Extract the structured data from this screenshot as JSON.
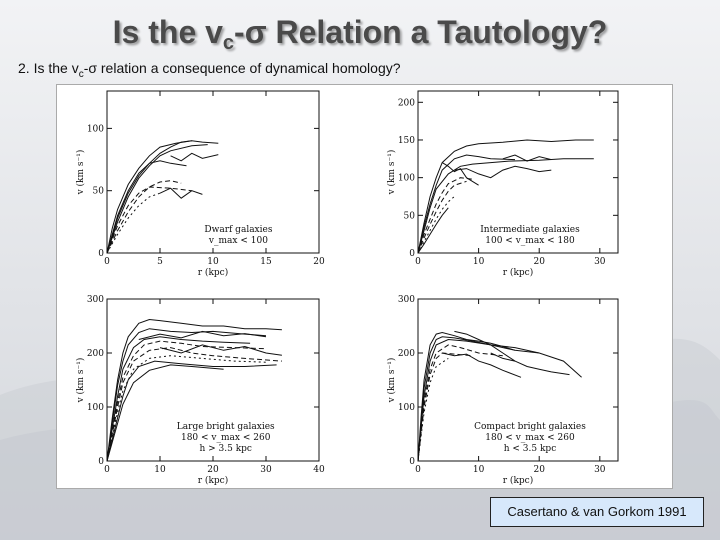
{
  "slide": {
    "title_main": "Is the v",
    "title_sub": "c",
    "title_rest": "-σ Relation a Tautology?",
    "subtitle_pre": "2. Is the v",
    "subtitle_sub": "c",
    "subtitle_post": "-σ relation a consequence of dynamical homology?",
    "credit": "Casertano & van Gorkom 1991"
  },
  "chart_data": [
    {
      "type": "line",
      "ylabel": "v (km s⁻¹)",
      "xlabel": "r (kpc)",
      "xlim": [
        0,
        20
      ],
      "ylim": [
        0,
        130
      ],
      "xticks": [
        0,
        5,
        10,
        15,
        20
      ],
      "yticks": [
        0,
        50,
        100
      ],
      "annotation": [
        "Dwarf galaxies",
        "v_max < 100"
      ],
      "series": [
        {
          "x": [
            0,
            0.5,
            1,
            2,
            3,
            4,
            5,
            6.5,
            8
          ],
          "y": [
            0,
            20,
            35,
            55,
            68,
            78,
            85,
            88,
            90
          ]
        },
        {
          "x": [
            0,
            1,
            2,
            3,
            4,
            5,
            6,
            8,
            9.5
          ],
          "y": [
            0,
            25,
            45,
            60,
            70,
            78,
            82,
            86,
            87
          ]
        },
        {
          "x": [
            0,
            1,
            2,
            3,
            4,
            5,
            6,
            7.5
          ],
          "y": [
            0,
            30,
            50,
            64,
            72,
            74,
            72,
            70
          ]
        },
        {
          "x": [
            0,
            1,
            2,
            3,
            4,
            5,
            6,
            7
          ],
          "y": [
            0,
            18,
            33,
            45,
            53,
            57,
            58,
            56
          ]
        },
        {
          "x": [
            0,
            1,
            2,
            3,
            4,
            6,
            8
          ],
          "y": [
            0,
            22,
            38,
            48,
            53,
            52,
            50
          ]
        },
        {
          "x": [
            0,
            1,
            2,
            3,
            4,
            5
          ],
          "y": [
            0,
            15,
            28,
            38,
            45,
            48
          ]
        },
        {
          "x": [
            0,
            1,
            2,
            3,
            4,
            5,
            6,
            7,
            8,
            9,
            10.5
          ],
          "y": [
            0,
            28,
            48,
            62,
            72,
            80,
            85,
            89,
            90,
            89,
            88
          ]
        },
        {
          "x": [
            5,
            6,
            7,
            8,
            9
          ],
          "y": [
            48,
            52,
            44,
            50,
            47
          ]
        },
        {
          "x": [
            6,
            7,
            8,
            9,
            10.5
          ],
          "y": [
            78,
            74,
            80,
            76,
            79
          ]
        }
      ]
    },
    {
      "type": "line",
      "ylabel": "v (km s⁻¹)",
      "xlabel": "r (kpc)",
      "xlim": [
        0,
        33
      ],
      "ylim": [
        0,
        215
      ],
      "xticks": [
        0,
        10,
        20,
        30
      ],
      "yticks": [
        0,
        50,
        100,
        150,
        200
      ],
      "annotation": [
        "Intermediate galaxies",
        "100 < v_max < 180"
      ],
      "series": [
        {
          "x": [
            0,
            1,
            2,
            3,
            4,
            6,
            8,
            10,
            14,
            18,
            22,
            26,
            29
          ],
          "y": [
            0,
            40,
            75,
            100,
            120,
            135,
            142,
            145,
            147,
            150,
            148,
            150,
            150
          ]
        },
        {
          "x": [
            0,
            1,
            2,
            3,
            5,
            7,
            9,
            12,
            15,
            20,
            24,
            29
          ],
          "y": [
            0,
            30,
            60,
            85,
            105,
            115,
            118,
            120,
            122,
            123,
            125,
            125
          ]
        },
        {
          "x": [
            0,
            1,
            2,
            3,
            4,
            6,
            8,
            10,
            12,
            16
          ],
          "y": [
            0,
            35,
            65,
            90,
            110,
            125,
            130,
            128,
            125,
            124
          ]
        },
        {
          "x": [
            0,
            1,
            2,
            3,
            4,
            5,
            7,
            9
          ],
          "y": [
            0,
            25,
            45,
            65,
            80,
            92,
            100,
            98
          ]
        },
        {
          "x": [
            0,
            1,
            2,
            3,
            4,
            5,
            6,
            8
          ],
          "y": [
            0,
            20,
            38,
            55,
            70,
            82,
            90,
            95
          ]
        },
        {
          "x": [
            0,
            1,
            2,
            3,
            4,
            5,
            6
          ],
          "y": [
            0,
            15,
            30,
            45,
            58,
            68,
            75
          ]
        },
        {
          "x": [
            0,
            1,
            2,
            3,
            4,
            5
          ],
          "y": [
            0,
            12,
            25,
            38,
            50,
            60
          ]
        },
        {
          "x": [
            4,
            5,
            6,
            7,
            8,
            9,
            10
          ],
          "y": [
            120,
            115,
            108,
            112,
            100,
            95,
            90
          ]
        },
        {
          "x": [
            6,
            8,
            10,
            12,
            14,
            16,
            18,
            20,
            22
          ],
          "y": [
            110,
            112,
            105,
            100,
            110,
            115,
            112,
            108,
            110
          ]
        },
        {
          "x": [
            14,
            16,
            18,
            20,
            22
          ],
          "y": [
            125,
            130,
            122,
            128,
            124
          ]
        }
      ]
    },
    {
      "type": "line",
      "ylabel": "v (km s⁻¹)",
      "xlabel": "r (kpc)",
      "xlim": [
        0,
        40
      ],
      "ylim": [
        0,
        300
      ],
      "xticks": [
        0,
        10,
        20,
        30,
        40
      ],
      "yticks": [
        0,
        100,
        200,
        300
      ],
      "annotation": [
        "Large bright galaxies",
        "180 < v_max < 260",
        "h > 3.5 kpc"
      ],
      "series": [
        {
          "x": [
            0,
            1,
            2,
            3,
            4,
            6,
            8,
            10,
            14,
            18,
            22,
            26,
            30,
            33
          ],
          "y": [
            0,
            80,
            150,
            200,
            230,
            255,
            262,
            260,
            255,
            250,
            250,
            245,
            245,
            243
          ]
        },
        {
          "x": [
            0,
            1,
            2,
            3,
            4,
            6,
            8,
            12,
            16,
            20,
            26,
            30
          ],
          "y": [
            0,
            70,
            140,
            185,
            215,
            238,
            245,
            240,
            238,
            240,
            235,
            232
          ]
        },
        {
          "x": [
            0,
            1,
            2,
            3,
            5,
            7,
            10,
            14,
            18,
            22,
            27
          ],
          "y": [
            0,
            60,
            120,
            170,
            210,
            225,
            230,
            225,
            222,
            220,
            218
          ]
        },
        {
          "x": [
            0,
            1,
            2,
            3,
            5,
            7,
            10,
            14,
            18,
            24,
            30
          ],
          "y": [
            0,
            55,
            110,
            155,
            195,
            215,
            222,
            218,
            212,
            210,
            208
          ]
        },
        {
          "x": [
            0,
            1,
            2,
            3,
            5,
            8,
            12,
            16,
            20,
            26,
            33
          ],
          "y": [
            0,
            50,
            100,
            145,
            185,
            205,
            210,
            200,
            195,
            190,
            185
          ]
        },
        {
          "x": [
            0,
            1,
            2,
            3,
            5,
            8,
            12,
            18,
            24,
            30
          ],
          "y": [
            0,
            45,
            90,
            130,
            170,
            190,
            195,
            190,
            185,
            183
          ]
        },
        {
          "x": [
            0,
            1,
            2,
            3,
            4,
            6,
            9,
            14,
            20,
            26,
            32
          ],
          "y": [
            0,
            40,
            80,
            120,
            150,
            175,
            185,
            180,
            175,
            175,
            178
          ]
        },
        {
          "x": [
            0,
            1,
            2,
            3,
            5,
            8,
            12,
            16,
            22
          ],
          "y": [
            0,
            35,
            70,
            105,
            145,
            168,
            178,
            175,
            170
          ]
        },
        {
          "x": [
            6,
            10,
            14,
            18,
            22,
            26,
            30
          ],
          "y": [
            225,
            235,
            228,
            240,
            232,
            236,
            230
          ]
        },
        {
          "x": [
            10,
            14,
            18,
            22,
            26,
            30,
            33
          ],
          "y": [
            210,
            200,
            215,
            205,
            212,
            200,
            196
          ]
        }
      ]
    },
    {
      "type": "line",
      "ylabel": "v (km s⁻¹)",
      "xlabel": "r (kpc)",
      "xlim": [
        0,
        33
      ],
      "ylim": [
        0,
        300
      ],
      "xticks": [
        0,
        10,
        20,
        30
      ],
      "yticks": [
        0,
        100,
        200,
        300
      ],
      "annotation": [
        "Compact bright galaxies",
        "180 < v_max < 260",
        "h < 3.5 kpc"
      ],
      "series": [
        {
          "x": [
            0,
            0.5,
            1,
            2,
            3,
            4,
            6,
            8,
            10,
            12,
            14,
            16
          ],
          "y": [
            0,
            80,
            150,
            215,
            235,
            238,
            232,
            225,
            222,
            218,
            212,
            205
          ]
        },
        {
          "x": [
            0,
            0.5,
            1,
            2,
            3,
            4,
            6,
            9,
            12,
            16,
            20
          ],
          "y": [
            0,
            70,
            135,
            200,
            225,
            230,
            228,
            222,
            215,
            210,
            200
          ]
        },
        {
          "x": [
            0,
            0.5,
            1,
            2,
            3,
            5,
            8,
            12,
            16,
            20,
            24,
            27
          ],
          "y": [
            0,
            60,
            120,
            185,
            215,
            225,
            222,
            215,
            205,
            200,
            185,
            155
          ]
        },
        {
          "x": [
            0,
            0.5,
            1,
            2,
            3,
            5,
            7,
            10,
            14
          ],
          "y": [
            0,
            55,
            110,
            170,
            200,
            215,
            210,
            200,
            195
          ]
        },
        {
          "x": [
            0,
            0.5,
            1,
            2,
            3,
            4,
            6,
            9
          ],
          "y": [
            0,
            50,
            100,
            160,
            190,
            200,
            198,
            195
          ]
        },
        {
          "x": [
            0,
            0.5,
            1,
            2,
            3,
            5
          ],
          "y": [
            0,
            45,
            90,
            145,
            175,
            190
          ]
        },
        {
          "x": [
            4,
            6,
            8,
            10,
            12,
            14,
            17
          ],
          "y": [
            200,
            195,
            198,
            185,
            178,
            168,
            155
          ]
        },
        {
          "x": [
            6,
            8,
            10,
            12,
            14,
            16
          ],
          "y": [
            240,
            235,
            225,
            215,
            200,
            185
          ]
        },
        {
          "x": [
            12,
            14,
            16,
            18,
            20,
            22,
            25
          ],
          "y": [
            200,
            190,
            185,
            175,
            170,
            165,
            160
          ]
        }
      ]
    }
  ]
}
